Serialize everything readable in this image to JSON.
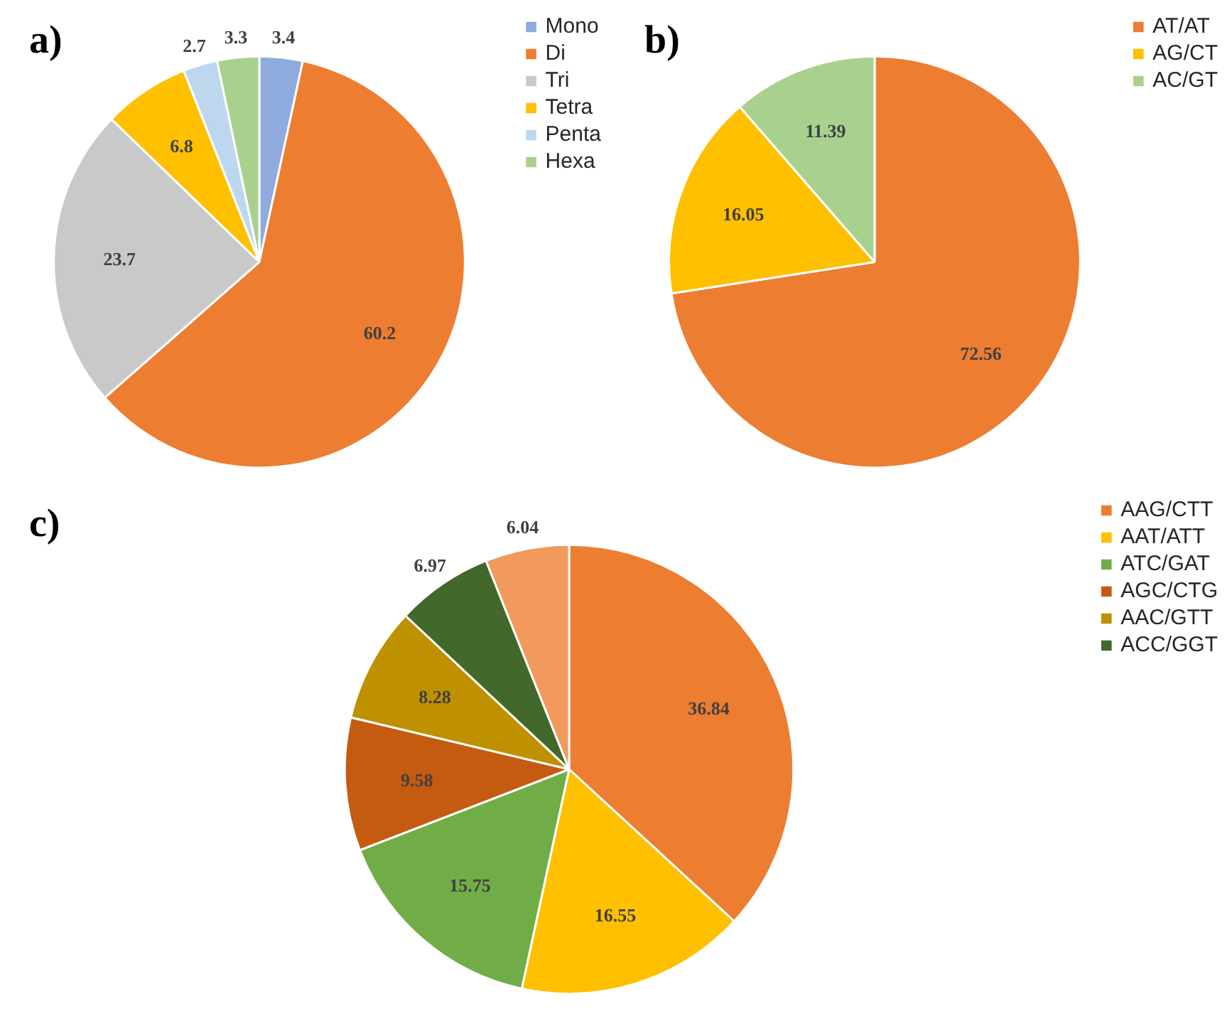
{
  "chart_data": [
    {
      "type": "pie",
      "title": "a)",
      "categories": [
        "Mono",
        "Di",
        "Tri",
        "Tetra",
        "Penta",
        "Hexa"
      ],
      "values": [
        3.4,
        60.2,
        23.7,
        6.8,
        2.7,
        3.3
      ],
      "colors": [
        "#8faadc",
        "#ed7d31",
        "#c9c9c9",
        "#ffc000",
        "#bdd7ee",
        "#a9d18e"
      ],
      "data_labels": true,
      "legend": "right"
    },
    {
      "type": "pie",
      "title": "b)",
      "categories": [
        "AT/AT",
        "AG/CT",
        "AC/GT"
      ],
      "values": [
        72.56,
        16.05,
        11.39
      ],
      "colors": [
        "#ed7d31",
        "#ffc000",
        "#a9d18e"
      ],
      "data_labels": true,
      "legend": "right"
    },
    {
      "type": "pie",
      "title": "c)",
      "categories": [
        "AAG/CTT",
        "AAT/ATT",
        "ATC/GAT",
        "AGC/CTG",
        "AAC/GTT",
        "ACC/GGT",
        null
      ],
      "values": [
        36.84,
        16.55,
        15.75,
        9.58,
        8.28,
        6.97,
        6.04
      ],
      "colors": [
        "#ed7d31",
        "#ffc000",
        "#70ad47",
        "#c55a11",
        "#bf9000",
        "#43682b",
        "#f19a5c"
      ],
      "data_labels": true,
      "legend": "right"
    }
  ]
}
